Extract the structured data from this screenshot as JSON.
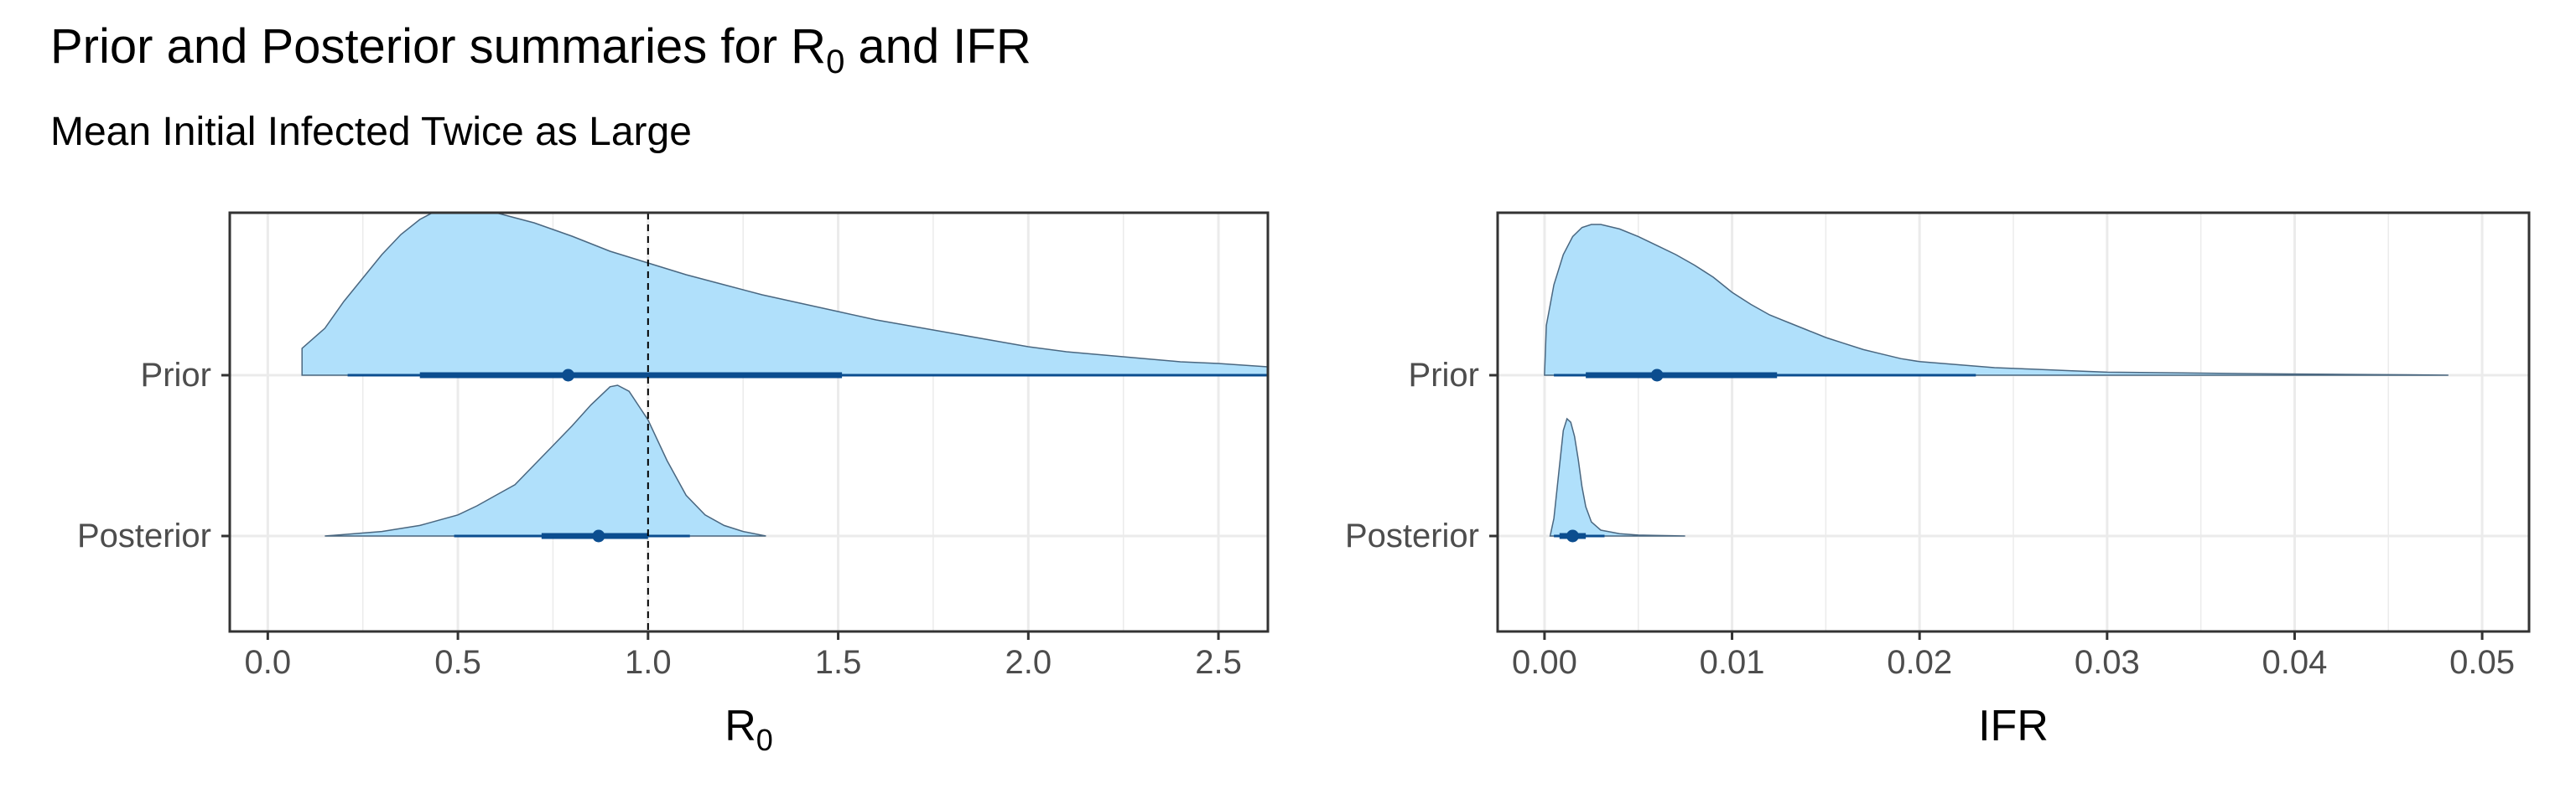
{
  "title": {
    "prefix": "Prior and Posterior summaries for R",
    "sub": "0",
    "suffix": " and IFR"
  },
  "subtitle": "Mean Initial Infected Twice as Large",
  "colors": {
    "density_fill": "#b0e0fb",
    "density_outline": "#4a6780",
    "interval": "#0b4d8f",
    "grid": "#ebebeb",
    "reference_line": "#000000"
  },
  "chart_data": [
    {
      "type": "halfeye",
      "xlabel": {
        "main": "R",
        "sub": "0"
      },
      "categories": [
        "Prior",
        "Posterior"
      ],
      "xlim": [
        -0.1,
        2.63
      ],
      "xticks": [
        0.0,
        0.5,
        1.0,
        1.5,
        2.0,
        2.5
      ],
      "xtick_labels": [
        "0.0",
        "0.5",
        "1.0",
        "1.5",
        "2.0",
        "2.5"
      ],
      "reference_line": 1.0,
      "grid": true,
      "series": [
        {
          "category": "Prior",
          "median": 0.79,
          "interval_66": [
            0.4,
            1.51
          ],
          "interval_95": [
            0.21,
            2.63
          ],
          "density": [
            [
              0.09,
              0.0
            ],
            [
              0.09,
              0.16
            ],
            [
              0.15,
              0.28
            ],
            [
              0.2,
              0.44
            ],
            [
              0.25,
              0.58
            ],
            [
              0.3,
              0.72
            ],
            [
              0.35,
              0.84
            ],
            [
              0.4,
              0.93
            ],
            [
              0.45,
              0.99
            ],
            [
              0.5,
              1.0
            ],
            [
              0.55,
              0.99
            ],
            [
              0.6,
              0.97
            ],
            [
              0.7,
              0.91
            ],
            [
              0.8,
              0.83
            ],
            [
              0.9,
              0.74
            ],
            [
              1.0,
              0.67
            ],
            [
              1.1,
              0.6
            ],
            [
              1.2,
              0.54
            ],
            [
              1.3,
              0.48
            ],
            [
              1.4,
              0.43
            ],
            [
              1.5,
              0.38
            ],
            [
              1.6,
              0.33
            ],
            [
              1.7,
              0.29
            ],
            [
              1.8,
              0.25
            ],
            [
              1.9,
              0.21
            ],
            [
              2.0,
              0.17
            ],
            [
              2.1,
              0.14
            ],
            [
              2.2,
              0.12
            ],
            [
              2.3,
              0.1
            ],
            [
              2.4,
              0.08
            ],
            [
              2.5,
              0.07
            ],
            [
              2.63,
              0.05
            ]
          ]
        },
        {
          "category": "Posterior",
          "median": 0.87,
          "interval_66": [
            0.72,
            1.0
          ],
          "interval_95": [
            0.49,
            1.11
          ],
          "density": [
            [
              0.15,
              0.0
            ],
            [
              0.2,
              0.01
            ],
            [
              0.3,
              0.03
            ],
            [
              0.4,
              0.07
            ],
            [
              0.5,
              0.14
            ],
            [
              0.55,
              0.2
            ],
            [
              0.6,
              0.27
            ],
            [
              0.65,
              0.34
            ],
            [
              0.7,
              0.47
            ],
            [
              0.75,
              0.6
            ],
            [
              0.8,
              0.73
            ],
            [
              0.85,
              0.87
            ],
            [
              0.9,
              0.99
            ],
            [
              0.92,
              1.0
            ],
            [
              0.95,
              0.96
            ],
            [
              1.0,
              0.77
            ],
            [
              1.05,
              0.5
            ],
            [
              1.1,
              0.27
            ],
            [
              1.15,
              0.14
            ],
            [
              1.2,
              0.07
            ],
            [
              1.25,
              0.03
            ],
            [
              1.31,
              0.0
            ]
          ]
        }
      ]
    },
    {
      "type": "halfeye",
      "xlabel": {
        "main": "IFR",
        "sub": ""
      },
      "categories": [
        "Prior",
        "Posterior"
      ],
      "xlim": [
        -0.0025,
        0.0525
      ],
      "xticks": [
        0.0,
        0.01,
        0.02,
        0.03,
        0.04,
        0.05
      ],
      "xtick_labels": [
        "0.00",
        "0.01",
        "0.02",
        "0.03",
        "0.04",
        "0.05"
      ],
      "grid": true,
      "series": [
        {
          "category": "Prior",
          "median": 0.006,
          "interval_66": [
            0.0022,
            0.0124
          ],
          "interval_95": [
            0.0005,
            0.023
          ],
          "density": [
            [
              0.0,
              0.0
            ],
            [
              0.0001,
              0.33
            ],
            [
              0.0005,
              0.6
            ],
            [
              0.001,
              0.8
            ],
            [
              0.0015,
              0.92
            ],
            [
              0.002,
              0.98
            ],
            [
              0.0025,
              1.0
            ],
            [
              0.003,
              1.0
            ],
            [
              0.004,
              0.97
            ],
            [
              0.005,
              0.92
            ],
            [
              0.006,
              0.86
            ],
            [
              0.007,
              0.8
            ],
            [
              0.008,
              0.73
            ],
            [
              0.009,
              0.65
            ],
            [
              0.01,
              0.55
            ],
            [
              0.011,
              0.47
            ],
            [
              0.012,
              0.4
            ],
            [
              0.013,
              0.35
            ],
            [
              0.014,
              0.3
            ],
            [
              0.015,
              0.25
            ],
            [
              0.016,
              0.21
            ],
            [
              0.017,
              0.17
            ],
            [
              0.018,
              0.14
            ],
            [
              0.019,
              0.11
            ],
            [
              0.02,
              0.09
            ],
            [
              0.022,
              0.07
            ],
            [
              0.024,
              0.05
            ],
            [
              0.026,
              0.04
            ],
            [
              0.028,
              0.03
            ],
            [
              0.03,
              0.02
            ],
            [
              0.034,
              0.015
            ],
            [
              0.038,
              0.01
            ],
            [
              0.042,
              0.006
            ],
            [
              0.046,
              0.003
            ],
            [
              0.0482,
              0.0
            ]
          ]
        },
        {
          "category": "Posterior",
          "median": 0.0015,
          "interval_66": [
            0.0008,
            0.0022
          ],
          "interval_95": [
            0.0005,
            0.0032
          ],
          "density": [
            [
              0.0003,
              0.0
            ],
            [
              0.0005,
              0.15
            ],
            [
              0.0008,
              0.6
            ],
            [
              0.001,
              0.9
            ],
            [
              0.0012,
              1.0
            ],
            [
              0.0014,
              0.97
            ],
            [
              0.0016,
              0.85
            ],
            [
              0.0018,
              0.65
            ],
            [
              0.002,
              0.42
            ],
            [
              0.0022,
              0.25
            ],
            [
              0.0025,
              0.12
            ],
            [
              0.003,
              0.05
            ],
            [
              0.004,
              0.02
            ],
            [
              0.005,
              0.008
            ],
            [
              0.0075,
              0.0
            ]
          ]
        }
      ]
    }
  ]
}
